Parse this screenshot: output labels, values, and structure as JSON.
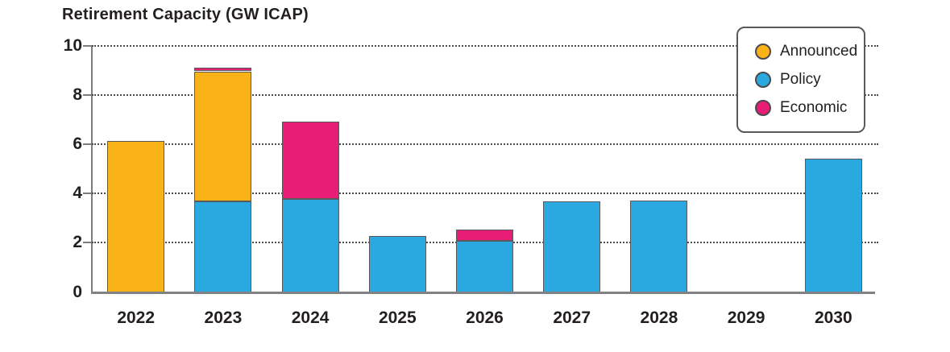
{
  "title": "Retirement Capacity (GW ICAP)",
  "legend": [
    {
      "label": "Announced",
      "color": "#F9B218"
    },
    {
      "label": "Policy",
      "color": "#29A9DF"
    },
    {
      "label": "Economic",
      "color": "#E81D75"
    }
  ],
  "chart_data": {
    "type": "bar",
    "stacked": true,
    "title": "Retirement Capacity (GW ICAP)",
    "xlabel": "",
    "ylabel": "GW ICAP",
    "categories": [
      "2022",
      "2023",
      "2024",
      "2025",
      "2026",
      "2027",
      "2028",
      "2029",
      "2030"
    ],
    "series": [
      {
        "name": "Policy",
        "color": "#29A9DF",
        "values": [
          0,
          3.7,
          3.8,
          2.3,
          2.1,
          3.7,
          3.75,
          0,
          5.45
        ]
      },
      {
        "name": "Announced",
        "color": "#F9B218",
        "values": [
          6.15,
          5.3,
          0,
          0,
          0,
          0,
          0,
          0,
          0
        ]
      },
      {
        "name": "Economic",
        "color": "#E81D75",
        "values": [
          0,
          0.15,
          3.15,
          0,
          0.45,
          0,
          0,
          0,
          0
        ]
      }
    ],
    "totals": [
      6.15,
      9.15,
      6.95,
      2.3,
      2.55,
      3.7,
      3.75,
      0,
      5.45
    ],
    "ylim": [
      0,
      10
    ],
    "yticks": [
      0,
      2,
      4,
      6,
      8,
      10
    ],
    "grid": "horizontal-dotted",
    "legend_position": "top-right",
    "legend_order": [
      "Announced",
      "Policy",
      "Economic"
    ]
  }
}
